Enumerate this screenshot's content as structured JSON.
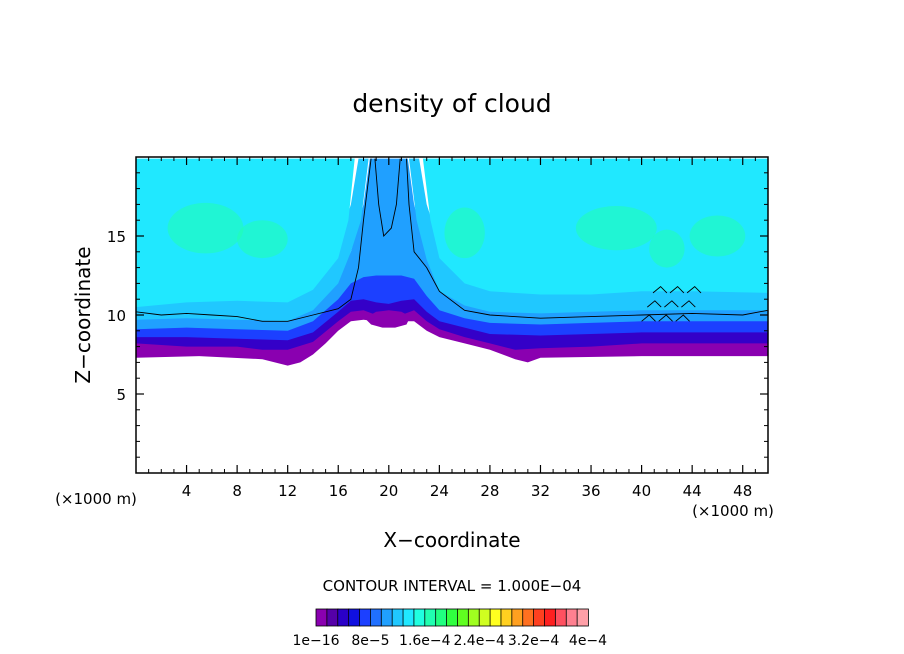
{
  "chart_data": {
    "type": "heatmap",
    "title": "density of cloud",
    "xlabel": "X−coordinate",
    "ylabel": "Z−coordinate",
    "x_unit_left": "(×1000 m)",
    "x_unit_right": "(×1000 m)",
    "xlim": [
      0,
      50
    ],
    "ylim": [
      0,
      20
    ],
    "x_ticks": [
      4,
      8,
      12,
      16,
      20,
      24,
      28,
      32,
      36,
      40,
      44,
      48
    ],
    "y_ticks": [
      5,
      10,
      15
    ],
    "contour_interval_text": "CONTOUR INTERVAL = 1.000E−04",
    "colorbar_labels": [
      "1e−16",
      "8e−5",
      "1.6e−4",
      "2.4e−4",
      "3.2e−4",
      "4e−4"
    ],
    "colorbar_colors": [
      "#8a00b0",
      "#5500a8",
      "#2a00c8",
      "#1010e0",
      "#1c40ff",
      "#2070ff",
      "#20a0ff",
      "#20c8ff",
      "#20e8ff",
      "#20ffe0",
      "#20ffb0",
      "#20ff80",
      "#30ff40",
      "#60ff20",
      "#a0ff20",
      "#d0ff20",
      "#ffff20",
      "#ffd020",
      "#ffa020",
      "#ff7020",
      "#ff4020",
      "#ff2020",
      "#ff5060",
      "#ff8090",
      "#ffa0a8"
    ],
    "layers": [
      {
        "name": "purple",
        "color": "#8a00b0",
        "boundary": [
          [
            0,
            10.8
          ],
          [
            1,
            10.3
          ],
          [
            2,
            10
          ],
          [
            4,
            10
          ],
          [
            6,
            10
          ],
          [
            8,
            9.8
          ],
          [
            10,
            9.5
          ],
          [
            12,
            9.4
          ],
          [
            14,
            9.7
          ],
          [
            15,
            10
          ],
          [
            16,
            10.5
          ],
          [
            17,
            10.8
          ],
          [
            18,
            11.2
          ],
          [
            19,
            11.4
          ],
          [
            20,
            11.5
          ],
          [
            21,
            11.3
          ],
          [
            22,
            11
          ],
          [
            23,
            10.5
          ],
          [
            24,
            10
          ],
          [
            26,
            9.5
          ],
          [
            28,
            9.3
          ],
          [
            30,
            9.2
          ],
          [
            32,
            9.2
          ],
          [
            34,
            9.3
          ],
          [
            36,
            9.5
          ],
          [
            38,
            9.7
          ],
          [
            40,
            9.8
          ],
          [
            42,
            9.9
          ],
          [
            44,
            10
          ],
          [
            46,
            10
          ],
          [
            48,
            10
          ],
          [
            50,
            10.2
          ]
        ],
        "base": [
          [
            0,
            7.3
          ],
          [
            5,
            7.4
          ],
          [
            10,
            7.2
          ],
          [
            12,
            6.8
          ],
          [
            13,
            7.0
          ],
          [
            14,
            7.5
          ],
          [
            15,
            8.2
          ],
          [
            16,
            9.0
          ],
          [
            17,
            9.6
          ],
          [
            18,
            9.7
          ],
          [
            19,
            9.6
          ],
          [
            20,
            9.5
          ],
          [
            21,
            9.6
          ],
          [
            22,
            9.6
          ],
          [
            23,
            9.0
          ],
          [
            24,
            8.6
          ],
          [
            26,
            8.2
          ],
          [
            28,
            7.8
          ],
          [
            30,
            7.2
          ],
          [
            31,
            7.0
          ],
          [
            32,
            7.3
          ],
          [
            40,
            7.4
          ],
          [
            50,
            7.4
          ]
        ]
      },
      {
        "name": "dark-blue",
        "color": "#3400c8",
        "boundary": [
          [
            0,
            10.9
          ],
          [
            2,
            10.3
          ],
          [
            4,
            10.3
          ],
          [
            8,
            10
          ],
          [
            10,
            9.9
          ],
          [
            12,
            9.8
          ],
          [
            14,
            10
          ],
          [
            16,
            10.8
          ],
          [
            18,
            11.8
          ],
          [
            20,
            12.5
          ],
          [
            22,
            11.8
          ],
          [
            24,
            10.8
          ],
          [
            26,
            10
          ],
          [
            28,
            9.8
          ],
          [
            32,
            9.7
          ],
          [
            36,
            9.9
          ],
          [
            40,
            10
          ],
          [
            44,
            10.3
          ],
          [
            48,
            10.4
          ],
          [
            50,
            10.7
          ]
        ],
        "base": [
          [
            0,
            8.2
          ],
          [
            4,
            8.0
          ],
          [
            8,
            8.0
          ],
          [
            10,
            7.8
          ],
          [
            12,
            7.8
          ],
          [
            14,
            8.3
          ],
          [
            16,
            9.6
          ],
          [
            17,
            10.2
          ],
          [
            18,
            10.3
          ],
          [
            19,
            10.0
          ],
          [
            20,
            9.8
          ],
          [
            21,
            10.0
          ],
          [
            22,
            10.3
          ],
          [
            23,
            9.6
          ],
          [
            24,
            9.1
          ],
          [
            26,
            8.6
          ],
          [
            28,
            8.2
          ],
          [
            30,
            7.8
          ],
          [
            32,
            7.9
          ],
          [
            36,
            8.0
          ],
          [
            40,
            8.2
          ],
          [
            44,
            8.2
          ],
          [
            50,
            8.2
          ]
        ]
      },
      {
        "name": "blue",
        "color": "#1c40ff",
        "boundary": [
          [
            0,
            11.1
          ],
          [
            4,
            10.7
          ],
          [
            8,
            10.5
          ],
          [
            12,
            10.3
          ],
          [
            14,
            10.6
          ],
          [
            16,
            11.5
          ],
          [
            17,
            12.8
          ],
          [
            18,
            14
          ],
          [
            19,
            16
          ],
          [
            20,
            17.5
          ],
          [
            21,
            16
          ],
          [
            22,
            14
          ],
          [
            23,
            12.5
          ],
          [
            24,
            11.3
          ],
          [
            26,
            10.6
          ],
          [
            30,
            10.3
          ],
          [
            36,
            10.5
          ],
          [
            40,
            10.7
          ],
          [
            44,
            10.8
          ],
          [
            48,
            10.9
          ],
          [
            50,
            11.2
          ]
        ],
        "base": [
          [
            0,
            8.6
          ],
          [
            4,
            8.6
          ],
          [
            8,
            8.5
          ],
          [
            12,
            8.4
          ],
          [
            14,
            8.9
          ],
          [
            16,
            10.2
          ],
          [
            17,
            10.9
          ],
          [
            18,
            11.0
          ],
          [
            19,
            10.8
          ],
          [
            20,
            10.7
          ],
          [
            21,
            10.9
          ],
          [
            22,
            11.0
          ],
          [
            23,
            10.2
          ],
          [
            24,
            9.6
          ],
          [
            26,
            9.2
          ],
          [
            28,
            8.8
          ],
          [
            32,
            8.7
          ],
          [
            36,
            8.8
          ],
          [
            40,
            8.9
          ],
          [
            44,
            8.9
          ],
          [
            50,
            8.9
          ]
        ]
      },
      {
        "name": "light-blue",
        "color": "#20a0ff",
        "boundary": [
          [
            0,
            11.8
          ],
          [
            4,
            11.6
          ],
          [
            8,
            11.3
          ],
          [
            12,
            11.1
          ],
          [
            14,
            11.5
          ],
          [
            16,
            12.5
          ],
          [
            17,
            14
          ],
          [
            18,
            17
          ],
          [
            18.5,
            19.9
          ],
          [
            21.5,
            19.9
          ],
          [
            22,
            17
          ],
          [
            23,
            14
          ],
          [
            24,
            12.2
          ],
          [
            26,
            11.5
          ],
          [
            30,
            11.2
          ],
          [
            36,
            11.3
          ],
          [
            40,
            11.6
          ],
          [
            44,
            11.7
          ],
          [
            48,
            11.8
          ],
          [
            50,
            12
          ]
        ],
        "base": [
          [
            0,
            9.1
          ],
          [
            4,
            9.2
          ],
          [
            8,
            9.1
          ],
          [
            12,
            9.0
          ],
          [
            14,
            9.6
          ],
          [
            16,
            11.0
          ],
          [
            17,
            12.0
          ],
          [
            18,
            12.4
          ],
          [
            19,
            12.5
          ],
          [
            20,
            12.5
          ],
          [
            21,
            12.5
          ],
          [
            22,
            12.3
          ],
          [
            23,
            11.2
          ],
          [
            24,
            10.3
          ],
          [
            26,
            9.8
          ],
          [
            28,
            9.5
          ],
          [
            32,
            9.4
          ],
          [
            36,
            9.5
          ],
          [
            40,
            9.6
          ],
          [
            44,
            9.6
          ],
          [
            50,
            9.6
          ]
        ]
      },
      {
        "name": "sky-blue",
        "color": "#20c8ff",
        "boundary": [
          [
            0,
            12.8
          ],
          [
            4,
            12.6
          ],
          [
            8,
            12.4
          ],
          [
            12,
            12.3
          ],
          [
            14,
            12.8
          ],
          [
            16,
            14.5
          ],
          [
            17,
            17
          ],
          [
            17.6,
            19.9
          ],
          [
            22.4,
            19.9
          ],
          [
            23,
            17
          ],
          [
            24,
            14.5
          ],
          [
            26,
            12.8
          ],
          [
            30,
            12.3
          ],
          [
            36,
            12.5
          ],
          [
            40,
            12.7
          ],
          [
            44,
            12.8
          ],
          [
            48,
            12.9
          ],
          [
            50,
            13.2
          ]
        ],
        "base": [
          [
            0,
            9.7
          ],
          [
            4,
            9.8
          ],
          [
            8,
            9.7
          ],
          [
            12,
            9.6
          ],
          [
            14,
            10.3
          ],
          [
            16,
            12.0
          ],
          [
            17,
            14.0
          ],
          [
            17.8,
            16.0
          ],
          [
            18.4,
            19.9
          ],
          [
            21.6,
            19.9
          ],
          [
            22.2,
            16.0
          ],
          [
            23,
            13.5
          ],
          [
            24,
            11.5
          ],
          [
            26,
            10.6
          ],
          [
            28,
            10.2
          ],
          [
            32,
            10.1
          ],
          [
            36,
            10.2
          ],
          [
            40,
            10.3
          ],
          [
            44,
            10.3
          ],
          [
            50,
            10.3
          ]
        ]
      },
      {
        "name": "cyan",
        "color": "#20e8ff",
        "boundary": [
          [
            0,
            19.9
          ],
          [
            50,
            19.9
          ]
        ],
        "base": [
          [
            0,
            10.5
          ],
          [
            4,
            10.8
          ],
          [
            8,
            10.9
          ],
          [
            12,
            10.8
          ],
          [
            14,
            11.6
          ],
          [
            16,
            13.6
          ],
          [
            16.8,
            16.0
          ],
          [
            17.3,
            19.9
          ],
          [
            22.7,
            19.9
          ],
          [
            23.3,
            16.0
          ],
          [
            24,
            13.6
          ],
          [
            26,
            12.0
          ],
          [
            28,
            11.5
          ],
          [
            32,
            11.3
          ],
          [
            36,
            11.3
          ],
          [
            40,
            11.5
          ],
          [
            44,
            11.5
          ],
          [
            50,
            11.4
          ]
        ]
      }
    ]
  }
}
